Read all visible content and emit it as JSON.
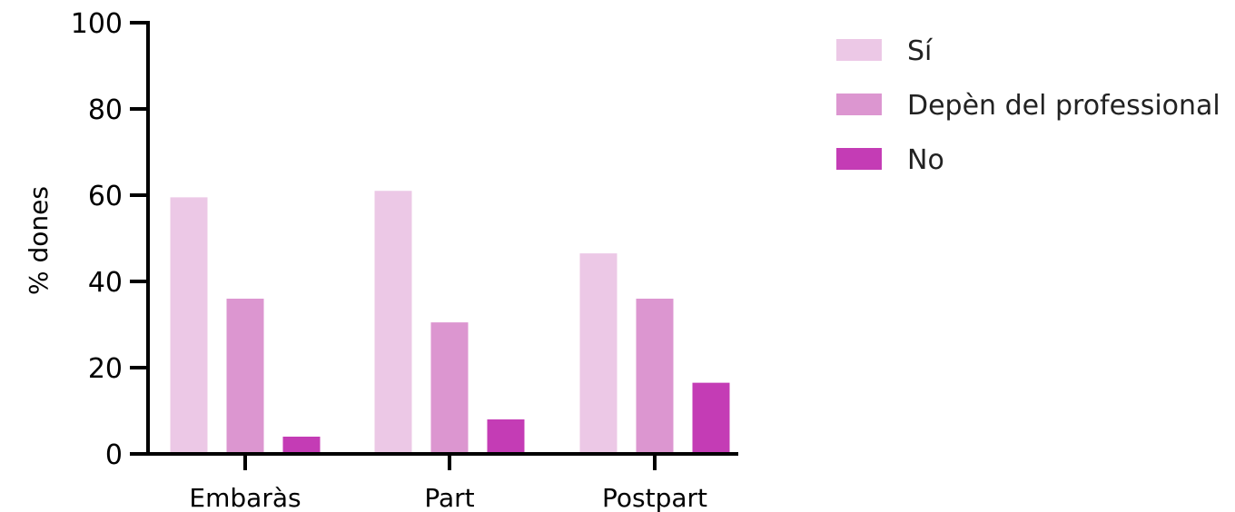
{
  "chart_data": {
    "type": "bar",
    "ylabel": "% dones",
    "xlabel": "",
    "ylim": [
      0,
      100
    ],
    "yticks": [
      0,
      20,
      40,
      60,
      80,
      100
    ],
    "grid": false,
    "legend_position": "top-right",
    "categories": [
      "Embaràs",
      "Part",
      "Postpart"
    ],
    "series": [
      {
        "name": "Sí",
        "color": "#ecc8e6",
        "values": [
          59.5,
          61,
          46.5
        ]
      },
      {
        "name": "Depèn del professional",
        "color": "#dc96d0",
        "values": [
          36,
          30.5,
          36
        ]
      },
      {
        "name": "No",
        "color": "#c43cb5",
        "values": [
          4,
          8,
          16.5
        ]
      }
    ]
  }
}
